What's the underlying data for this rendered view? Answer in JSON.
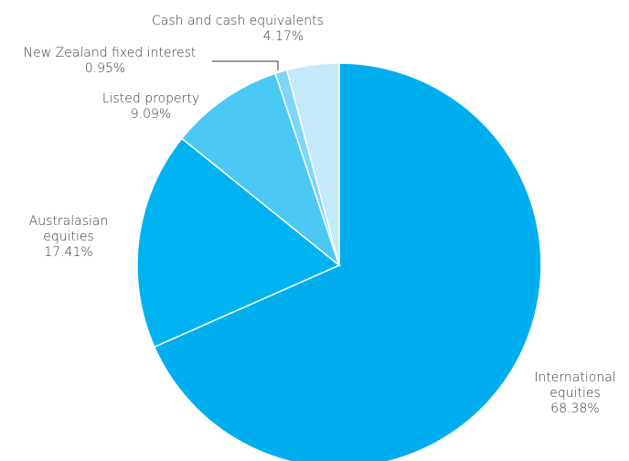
{
  "chart_data": {
    "type": "pie",
    "start_angle_deg": 0,
    "direction": "clockwise",
    "slices": [
      {
        "name": "International equities",
        "name_lines": [
          "International",
          "equities"
        ],
        "value": 68.38,
        "label": "68.38%",
        "color": "#00aeef"
      },
      {
        "name": "Australasian equities",
        "name_lines": [
          "Australasian",
          "equities"
        ],
        "value": 17.41,
        "label": "17.41%",
        "color": "#00b3f0"
      },
      {
        "name": "Listed property",
        "name_lines": [
          "Listed property"
        ],
        "value": 9.09,
        "label": "9.09%",
        "color": "#4cc8f5"
      },
      {
        "name": "New Zealand fixed interest",
        "name_lines": [
          "New Zealand fixed interest"
        ],
        "value": 0.95,
        "label": "0.95%",
        "color": "#7fd6f7"
      },
      {
        "name": "Cash and cash equivalents",
        "name_lines": [
          "Cash and cash equivalents"
        ],
        "value": 4.17,
        "label": "4.17%",
        "color": "#c3e9fb"
      }
    ]
  }
}
